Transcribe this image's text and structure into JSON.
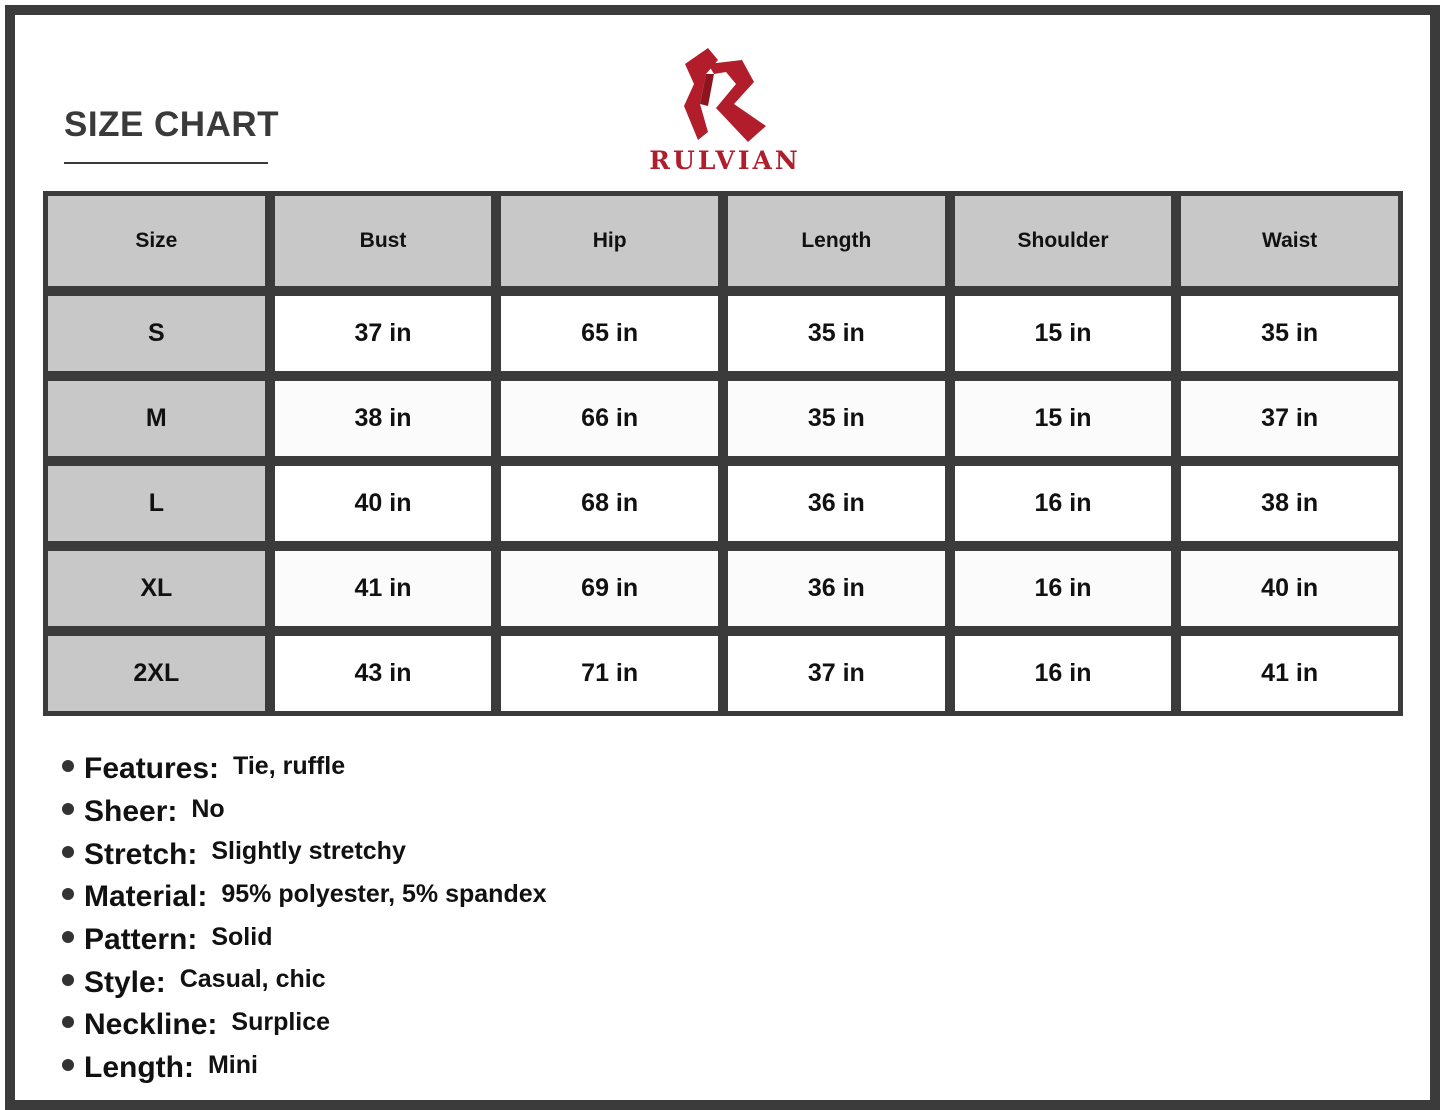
{
  "header": {
    "title": "SIZE CHART",
    "brand": "RULVIAN",
    "brand_color": "#b11d2b"
  },
  "table": {
    "columns": [
      "Size",
      "Bust",
      "Hip",
      "Length",
      "Shoulder",
      "Waist"
    ],
    "rows": [
      [
        "S",
        "37 in",
        "65 in",
        "35 in",
        "15 in",
        "35 in"
      ],
      [
        "M",
        "38 in",
        "66 in",
        "35 in",
        "15 in",
        "37 in"
      ],
      [
        "L",
        "40 in",
        "68 in",
        "36 in",
        "16 in",
        "38 in"
      ],
      [
        "XL",
        "41 in",
        "69 in",
        "36 in",
        "16 in",
        "40 in"
      ],
      [
        "2XL",
        "43 in",
        "71 in",
        "37 in",
        "16 in",
        "41 in"
      ]
    ]
  },
  "features": [
    {
      "label": "Features:",
      "value": "Tie, ruffle"
    },
    {
      "label": "Sheer:",
      "value": "No"
    },
    {
      "label": "Stretch:",
      "value": "Slightly stretchy"
    },
    {
      "label": "Material:",
      "value": "95% polyester, 5% spandex"
    },
    {
      "label": "Pattern:",
      "value": "Solid"
    },
    {
      "label": "Style:",
      "value": "Casual, chic"
    },
    {
      "label": "Neckline:",
      "value": "Surplice"
    },
    {
      "label": "Length:",
      "value": "Mini"
    }
  ]
}
